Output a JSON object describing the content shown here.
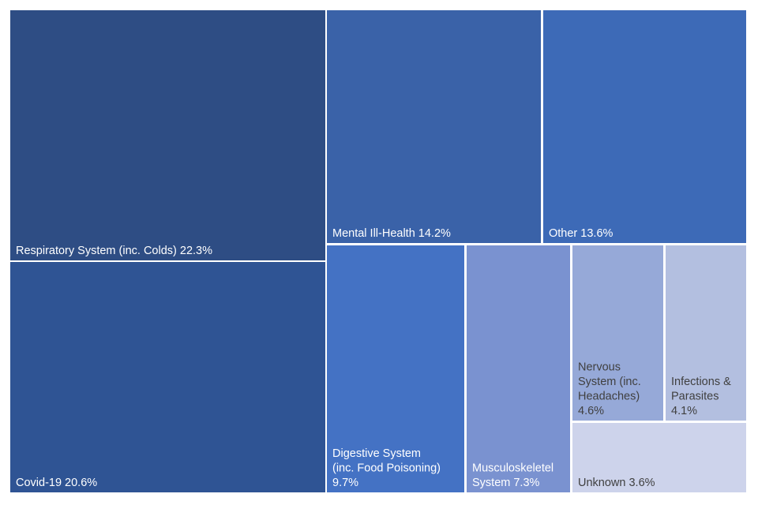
{
  "chart_data": {
    "type": "treemap",
    "title": "",
    "items": [
      {
        "label": "Respiratory System (inc. Colds)",
        "value": 22.3,
        "value_label": "22.3%",
        "lines": [
          "Respiratory System (inc. Colds) 22.3%"
        ],
        "color": "#2E4D84",
        "text_color": "#ffffff"
      },
      {
        "label": "Covid-19",
        "value": 20.6,
        "value_label": "20.6%",
        "lines": [
          "Covid-19 20.6%"
        ],
        "color": "#2F5494",
        "text_color": "#ffffff"
      },
      {
        "label": "Mental Ill-Health",
        "value": 14.2,
        "value_label": "14.2%",
        "lines": [
          "Mental Ill-Health 14.2%"
        ],
        "color": "#3A62A8",
        "text_color": "#ffffff"
      },
      {
        "label": "Other",
        "value": 13.6,
        "value_label": "13.6%",
        "lines": [
          "Other 13.6%"
        ],
        "color": "#3D6AB7",
        "text_color": "#ffffff"
      },
      {
        "label": "Digestive System (inc. Food Poisoning)",
        "value": 9.7,
        "value_label": "9.7%",
        "lines": [
          "Digestive System",
          "(inc. Food Poisoning)",
          "9.7%"
        ],
        "color": "#4472C4",
        "text_color": "#ffffff"
      },
      {
        "label": "Musculoskeletel System",
        "value": 7.3,
        "value_label": "7.3%",
        "lines": [
          "Musculoskeletel",
          "System 7.3%"
        ],
        "color": "#7A92D0",
        "text_color": "#ffffff"
      },
      {
        "label": "Nervous System (inc. Headaches)",
        "value": 4.6,
        "value_label": "4.6%",
        "lines": [
          "Nervous",
          "System (inc.",
          "Headaches)",
          "4.6%"
        ],
        "color": "#96A9D8",
        "text_color": "#404040"
      },
      {
        "label": "Infections & Parasites",
        "value": 4.1,
        "value_label": "4.1%",
        "lines": [
          "Infections &",
          "Parasites",
          "4.1%"
        ],
        "color": "#B3BFE0",
        "text_color": "#404040"
      },
      {
        "label": "Unknown",
        "value": 3.6,
        "value_label": "3.6%",
        "lines": [
          "Unknown 3.6%"
        ],
        "color": "#CDD3EB",
        "text_color": "#404040"
      }
    ]
  }
}
